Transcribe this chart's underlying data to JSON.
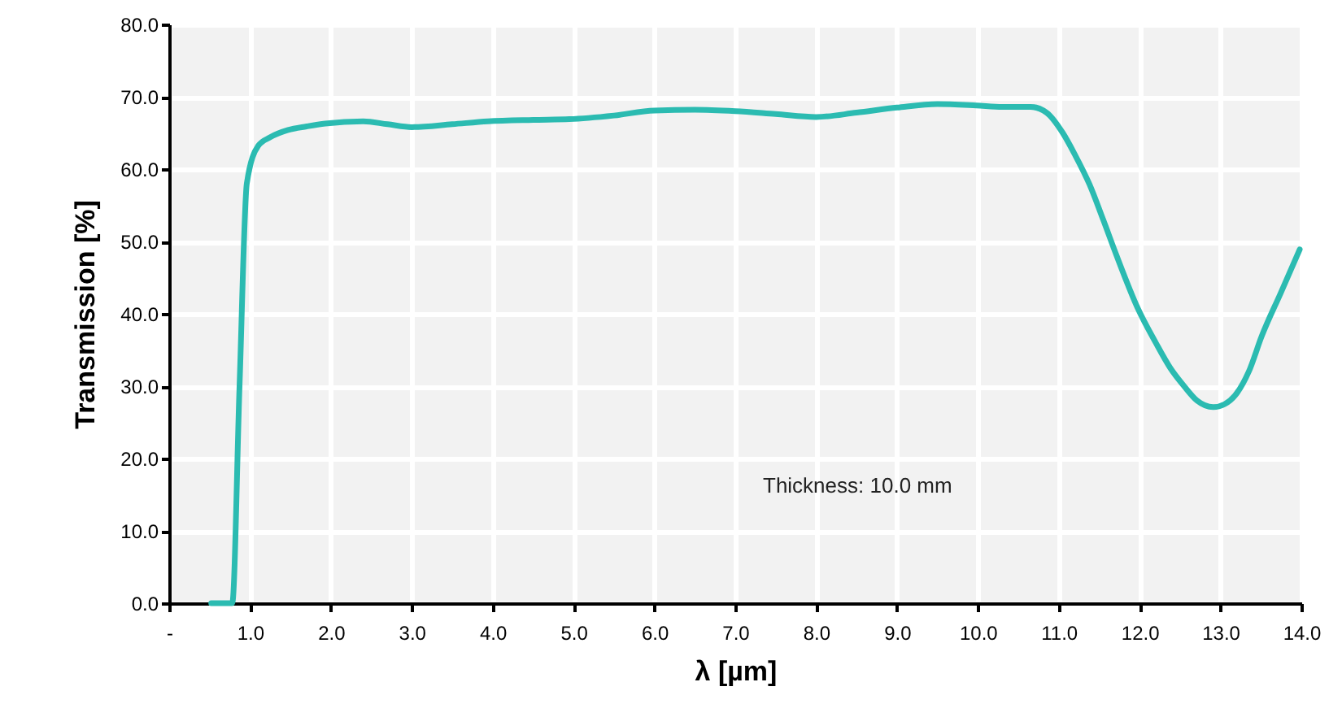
{
  "chart_data": {
    "type": "line",
    "xlabel": "λ [µm]",
    "ylabel": "Transmission [%]",
    "annotations": [
      "Thickness: 10.0 mm"
    ],
    "xlim": [
      0,
      14
    ],
    "ylim": [
      0,
      80
    ],
    "xticks": [
      {
        "value": 0,
        "label": "-"
      },
      {
        "value": 1,
        "label": "1.0"
      },
      {
        "value": 2,
        "label": "2.0"
      },
      {
        "value": 3,
        "label": "3.0"
      },
      {
        "value": 4,
        "label": "4.0"
      },
      {
        "value": 5,
        "label": "5.0"
      },
      {
        "value": 6,
        "label": "6.0"
      },
      {
        "value": 7,
        "label": "7.0"
      },
      {
        "value": 8,
        "label": "8.0"
      },
      {
        "value": 9,
        "label": "9.0"
      },
      {
        "value": 10,
        "label": "10.0"
      },
      {
        "value": 11,
        "label": "11.0"
      },
      {
        "value": 12,
        "label": "12.0"
      },
      {
        "value": 13,
        "label": "13.0"
      },
      {
        "value": 14,
        "label": "14.0"
      }
    ],
    "yticks": [
      {
        "value": 0,
        "label": "0.0"
      },
      {
        "value": 10,
        "label": "10.0"
      },
      {
        "value": 20,
        "label": "20.0"
      },
      {
        "value": 30,
        "label": "30.0"
      },
      {
        "value": 40,
        "label": "40.0"
      },
      {
        "value": 50,
        "label": "50.0"
      },
      {
        "value": 60,
        "label": "60.0"
      },
      {
        "value": 70,
        "label": "70.0"
      },
      {
        "value": 80,
        "label": "80.0"
      }
    ],
    "grid": true,
    "marker": "none",
    "line_style": "solid",
    "series": [
      {
        "color": "#2bbbb1",
        "x": [
          0.52,
          0.78,
          0.87,
          0.96,
          1.1,
          1.25,
          1.47,
          1.7,
          1.93,
          2.4,
          2.7,
          3.0,
          3.5,
          3.94,
          4.5,
          4.95,
          5.5,
          6.0,
          6.5,
          7.0,
          7.5,
          8.0,
          8.5,
          9.0,
          9.5,
          9.98,
          10.3,
          10.65,
          10.85,
          11.05,
          11.2,
          11.38,
          11.55,
          11.71,
          11.98,
          12.2,
          12.38,
          12.55,
          12.71,
          12.91,
          13.05,
          13.18,
          13.35,
          13.51,
          13.75,
          13.98
        ],
        "values": [
          0,
          0,
          30,
          58,
          63.2,
          64.4,
          65.4,
          65.9,
          66.3,
          66.6,
          66.2,
          65.8,
          66.2,
          66.6,
          66.8,
          66.9,
          67.4,
          68.1,
          68.2,
          68.0,
          67.6,
          67.2,
          67.8,
          68.5,
          69.0,
          68.8,
          68.6,
          68.6,
          67.8,
          65.0,
          62.0,
          57.9,
          53.0,
          48.2,
          40.7,
          36.0,
          32.5,
          30.0,
          28.0,
          27.1,
          27.5,
          28.7,
          32.0,
          36.9,
          43.0,
          48.9
        ]
      }
    ]
  }
}
